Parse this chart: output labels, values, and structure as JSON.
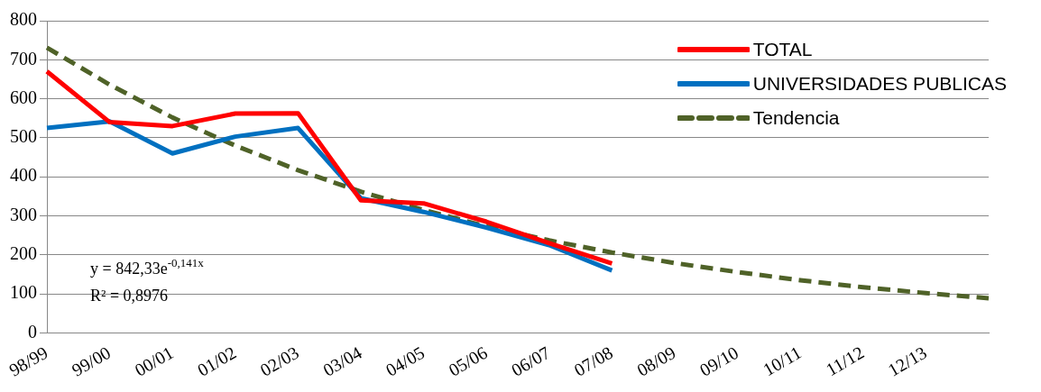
{
  "chart_data": {
    "type": "line",
    "categories": [
      "98/99",
      "99/00",
      "00/01",
      "01/02",
      "02/03",
      "03/04",
      "04/05",
      "05/06",
      "06/07",
      "07/08",
      "08/09",
      "09/10",
      "10/11",
      "11/12",
      "12/13",
      null
    ],
    "series": [
      {
        "name": "TOTAL",
        "color": "#ff0000",
        "values": [
          670,
          540,
          530,
          562,
          563,
          340,
          332,
          285,
          230,
          178,
          null,
          null,
          null,
          null,
          null,
          null
        ]
      },
      {
        "name": "UNIVERSIDADES PUBLICAS",
        "color": "#0070c0",
        "values": [
          525,
          542,
          460,
          503,
          525,
          345,
          310,
          270,
          225,
          160,
          null,
          null,
          null,
          null,
          null,
          null
        ]
      },
      {
        "name": "Tendencia",
        "color": "#4f6228",
        "line_style": "dashed",
        "values": [
          731,
          636,
          552,
          480,
          417,
          362,
          315,
          273,
          237,
          206,
          179,
          156,
          135,
          117,
          102,
          89
        ]
      }
    ],
    "ylim": [
      0,
      800
    ],
    "yticks": [
      0,
      100,
      200,
      300,
      400,
      500,
      600,
      700,
      800
    ],
    "grid": "y",
    "legend": "top right",
    "marker": "none",
    "annotations": [
      "y = 842,33e$^{-0,141x}$",
      "R² = 0,8976"
    ]
  }
}
